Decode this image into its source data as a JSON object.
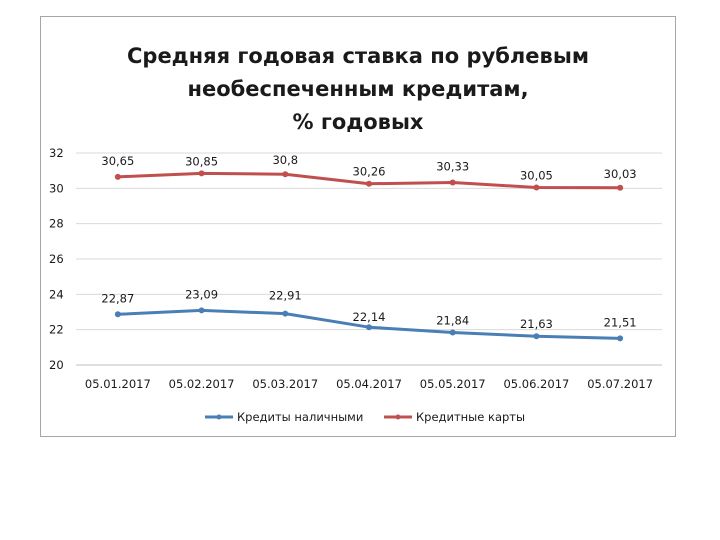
{
  "chart_data": {
    "type": "line",
    "title_lines": [
      "Средняя годовая ставка по рублевым",
      "необеспеченным кредитам,",
      "% годовых"
    ],
    "categories": [
      "05.01.2017",
      "05.02.2017",
      "05.03.2017",
      "05.04.2017",
      "05.05.2017",
      "05.06.2017",
      "05.07.2017"
    ],
    "series": [
      {
        "name": "Кредиты наличными",
        "color": "#4a7fb5",
        "values": [
          22.87,
          23.09,
          22.91,
          22.14,
          21.84,
          21.63,
          21.51
        ],
        "labels": [
          "22,87",
          "23,09",
          "22,91",
          "22,14",
          "21,84",
          "21,63",
          "21,51"
        ]
      },
      {
        "name": "Кредитные карты",
        "color": "#c0504d",
        "values": [
          30.65,
          30.85,
          30.8,
          30.26,
          30.33,
          30.05,
          30.03
        ],
        "labels": [
          "30,65",
          "30,85",
          "30,8",
          "30,26",
          "30,33",
          "30,05",
          "30,03"
        ]
      }
    ],
    "ylim": [
      20,
      32
    ],
    "yticks": [
      20,
      22,
      24,
      26,
      28,
      30,
      32
    ],
    "grid": true,
    "legend_position": "bottom"
  }
}
